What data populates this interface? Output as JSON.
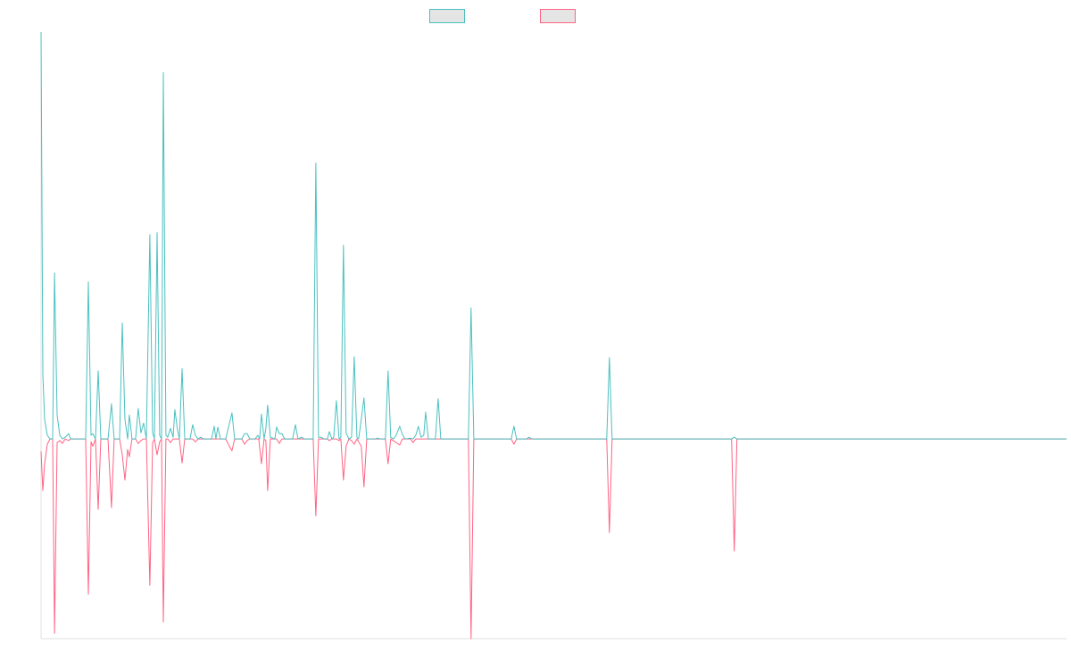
{
  "chart_data": {
    "type": "line",
    "title": "",
    "xlabel": "",
    "ylabel": "",
    "xlim": [
      0,
      1000
    ],
    "ylim": [
      -49.1,
      100
    ],
    "grid": false,
    "legend_placement": "top-center",
    "series": [
      {
        "name": "",
        "color": "#4bc0c0",
        "points": [
          [
            0,
            100
          ],
          [
            1.7,
            15.8
          ],
          [
            3.5,
            4.8
          ],
          [
            6.1,
            0.9
          ],
          [
            8.7,
            0
          ],
          [
            11.3,
            0
          ],
          [
            13.1,
            40.8
          ],
          [
            15.7,
            5.9
          ],
          [
            18.3,
            0.9
          ],
          [
            20.9,
            0
          ],
          [
            23.5,
            0.4
          ],
          [
            27,
            1.3
          ],
          [
            28.7,
            0
          ],
          [
            43.5,
            0
          ],
          [
            46.1,
            38.6
          ],
          [
            48.7,
            0.9
          ],
          [
            50.5,
            1.3
          ],
          [
            53.1,
            0
          ],
          [
            55.7,
            16.7
          ],
          [
            58.3,
            0
          ],
          [
            65.3,
            0
          ],
          [
            68.7,
            8.6
          ],
          [
            71.3,
            0
          ],
          [
            76.6,
            0
          ],
          [
            79.2,
            28.5
          ],
          [
            81.8,
            4.8
          ],
          [
            84.4,
            0
          ],
          [
            86.1,
            5.9
          ],
          [
            88.7,
            0
          ],
          [
            92.2,
            0
          ],
          [
            94.8,
            7.5
          ],
          [
            97.4,
            1.5
          ],
          [
            100,
            3.9
          ],
          [
            102.7,
            0
          ],
          [
            106.1,
            50.2
          ],
          [
            108.8,
            1.5
          ],
          [
            110.5,
            0
          ],
          [
            113.1,
            50.7
          ],
          [
            115.7,
            0.9
          ],
          [
            117.5,
            0
          ],
          [
            119.2,
            90.1
          ],
          [
            121.8,
            0.9
          ],
          [
            123.5,
            0.4
          ],
          [
            126.2,
            2.6
          ],
          [
            128.8,
            0.4
          ],
          [
            130.5,
            7.2
          ],
          [
            133.1,
            2.2
          ],
          [
            134.9,
            0
          ],
          [
            137.5,
            17.3
          ],
          [
            140.1,
            0
          ],
          [
            145.3,
            0
          ],
          [
            147.9,
            3.5
          ],
          [
            150.5,
            0.9
          ],
          [
            153.1,
            0
          ],
          [
            155.7,
            0.4
          ],
          [
            158.3,
            0
          ],
          [
            166.2,
            0
          ],
          [
            168.8,
            3.1
          ],
          [
            170.5,
            0
          ],
          [
            172.3,
            2.9
          ],
          [
            174.9,
            0
          ],
          [
            180.1,
            0
          ],
          [
            186.2,
            6.4
          ],
          [
            188.8,
            0
          ],
          [
            195.8,
            0
          ],
          [
            198.4,
            1.3
          ],
          [
            201,
            1.3
          ],
          [
            203.6,
            0
          ],
          [
            208.8,
            0
          ],
          [
            211.4,
            0.9
          ],
          [
            213.2,
            0
          ],
          [
            214.9,
            6.1
          ],
          [
            217.5,
            0
          ],
          [
            219.2,
            2.6
          ],
          [
            221,
            8.3
          ],
          [
            223.6,
            0.4
          ],
          [
            227.9,
            0
          ],
          [
            229.7,
            2.9
          ],
          [
            232.3,
            1.3
          ],
          [
            234.9,
            1.3
          ],
          [
            237.5,
            0
          ],
          [
            245.3,
            0
          ],
          [
            248,
            3.5
          ],
          [
            250.6,
            0
          ],
          [
            254,
            0.4
          ],
          [
            256.7,
            0
          ],
          [
            265.4,
            0
          ],
          [
            268,
            67.8
          ],
          [
            270.6,
            0.4
          ],
          [
            273.2,
            0.4
          ],
          [
            275.8,
            0
          ],
          [
            279.3,
            0
          ],
          [
            281,
            1.8
          ],
          [
            283.6,
            0
          ],
          [
            285.4,
            0.4
          ],
          [
            288,
            9.4
          ],
          [
            290.6,
            0
          ],
          [
            292.3,
            0.4
          ],
          [
            294.9,
            47.6
          ],
          [
            297.5,
            1.5
          ],
          [
            300.2,
            0
          ],
          [
            302.8,
            0.4
          ],
          [
            305.4,
            20.2
          ],
          [
            308,
            0.4
          ],
          [
            309.7,
            0
          ],
          [
            312.3,
            4.8
          ],
          [
            314.9,
            10.1
          ],
          [
            317.6,
            0
          ],
          [
            325.4,
            0
          ],
          [
            328,
            0.2
          ],
          [
            330.6,
            0
          ],
          [
            335.8,
            0
          ],
          [
            338.4,
            16.7
          ],
          [
            341,
            0.4
          ],
          [
            343.7,
            0
          ],
          [
            346.3,
            0.9
          ],
          [
            349.7,
            3.1
          ],
          [
            352.4,
            1.1
          ],
          [
            355,
            0
          ],
          [
            360.2,
            0.2
          ],
          [
            362.8,
            0
          ],
          [
            365.4,
            0.9
          ],
          [
            368,
            3.1
          ],
          [
            370.6,
            0.4
          ],
          [
            373.2,
            0.9
          ],
          [
            375,
            6.6
          ],
          [
            377.6,
            0
          ],
          [
            384.5,
            0
          ],
          [
            387.2,
            9.9
          ],
          [
            389.8,
            0
          ],
          [
            399.3,
            0
          ],
          [
            416.7,
            0
          ],
          [
            419.3,
            32.2
          ],
          [
            422,
            0
          ],
          [
            458.5,
            0
          ],
          [
            461.1,
            3.1
          ],
          [
            463.7,
            0
          ],
          [
            473.3,
            0
          ],
          [
            475.9,
            0.4
          ],
          [
            478.5,
            0
          ],
          [
            551.6,
            0
          ],
          [
            554.2,
            20
          ],
          [
            556.8,
            0
          ],
          [
            673.4,
            0
          ],
          [
            676,
            0.4
          ],
          [
            678.6,
            0
          ],
          [
            1000,
            0
          ]
        ]
      },
      {
        "name": "",
        "color": "#ff6384",
        "points": [
          [
            0,
            -3.1
          ],
          [
            1.7,
            -12.7
          ],
          [
            3.5,
            -6.1
          ],
          [
            6.1,
            -1.3
          ],
          [
            8.7,
            0
          ],
          [
            11.3,
            0
          ],
          [
            13.1,
            -47.8
          ],
          [
            15.7,
            -0.9
          ],
          [
            18.3,
            -0.4
          ],
          [
            20.9,
            -1.1
          ],
          [
            23.5,
            0
          ],
          [
            27,
            -0.4
          ],
          [
            28.7,
            0
          ],
          [
            43.5,
            0
          ],
          [
            46.1,
            -38.2
          ],
          [
            48.7,
            -0.7
          ],
          [
            50.5,
            -1.8
          ],
          [
            53.1,
            0
          ],
          [
            55.7,
            -17.3
          ],
          [
            58.3,
            0
          ],
          [
            65.3,
            0
          ],
          [
            68.7,
            -16.9
          ],
          [
            71.3,
            0
          ],
          [
            76.6,
            0
          ],
          [
            79.2,
            -3.9
          ],
          [
            81.8,
            -10.1
          ],
          [
            84.4,
            -2.6
          ],
          [
            86.1,
            -4.4
          ],
          [
            88.7,
            0
          ],
          [
            92.2,
            0
          ],
          [
            94.8,
            -1.1
          ],
          [
            97.4,
            -0.4
          ],
          [
            100,
            0
          ],
          [
            102.7,
            0
          ],
          [
            106.1,
            -36
          ],
          [
            108.8,
            -0.9
          ],
          [
            110.5,
            0
          ],
          [
            113.1,
            -3.9
          ],
          [
            115.7,
            -0.7
          ],
          [
            117.5,
            0
          ],
          [
            119.2,
            -45
          ],
          [
            121.8,
            0
          ],
          [
            123.5,
            0
          ],
          [
            126.2,
            -0.9
          ],
          [
            128.8,
            0
          ],
          [
            134.9,
            0
          ],
          [
            137.5,
            -5.9
          ],
          [
            140.1,
            0
          ],
          [
            147.9,
            0
          ],
          [
            150.5,
            -0.7
          ],
          [
            153.1,
            0
          ],
          [
            180.1,
            0
          ],
          [
            183.6,
            -1.8
          ],
          [
            186.2,
            -2.9
          ],
          [
            188.8,
            0
          ],
          [
            195.8,
            0
          ],
          [
            198.4,
            -1.3
          ],
          [
            201,
            -0.4
          ],
          [
            203.6,
            0
          ],
          [
            212.3,
            0
          ],
          [
            214.9,
            -6.1
          ],
          [
            217.5,
            0
          ],
          [
            219.2,
            -0.4
          ],
          [
            221,
            -12.7
          ],
          [
            223.6,
            0
          ],
          [
            229.7,
            0
          ],
          [
            232.3,
            -1.1
          ],
          [
            234.9,
            0
          ],
          [
            265.4,
            0
          ],
          [
            268,
            -18.9
          ],
          [
            270.6,
            0
          ],
          [
            279.3,
            0
          ],
          [
            281,
            -0.4
          ],
          [
            283.6,
            0
          ],
          [
            288,
            0
          ],
          [
            290.6,
            -0.4
          ],
          [
            292.3,
            0
          ],
          [
            294.9,
            -10.1
          ],
          [
            297.5,
            -1.8
          ],
          [
            300.2,
            0
          ],
          [
            302.8,
            -0.4
          ],
          [
            305.4,
            -1.3
          ],
          [
            308,
            0
          ],
          [
            312.3,
            -1.8
          ],
          [
            314.9,
            -11.8
          ],
          [
            317.6,
            0
          ],
          [
            335.8,
            0
          ],
          [
            338.4,
            -6.1
          ],
          [
            341,
            0
          ],
          [
            346.3,
            -0.9
          ],
          [
            349.7,
            -1.5
          ],
          [
            352.4,
            0
          ],
          [
            360.2,
            0
          ],
          [
            362.8,
            -0.9
          ],
          [
            365.4,
            0
          ],
          [
            416.7,
            0
          ],
          [
            419.3,
            -49.1
          ],
          [
            422,
            0
          ],
          [
            458.5,
            0
          ],
          [
            461.1,
            -1.3
          ],
          [
            463.7,
            0
          ],
          [
            551.6,
            0
          ],
          [
            554.2,
            -23
          ],
          [
            556.8,
            0
          ],
          [
            673.4,
            0
          ],
          [
            676,
            -27.6
          ],
          [
            678.6,
            0
          ],
          [
            1000,
            0
          ]
        ]
      }
    ]
  }
}
